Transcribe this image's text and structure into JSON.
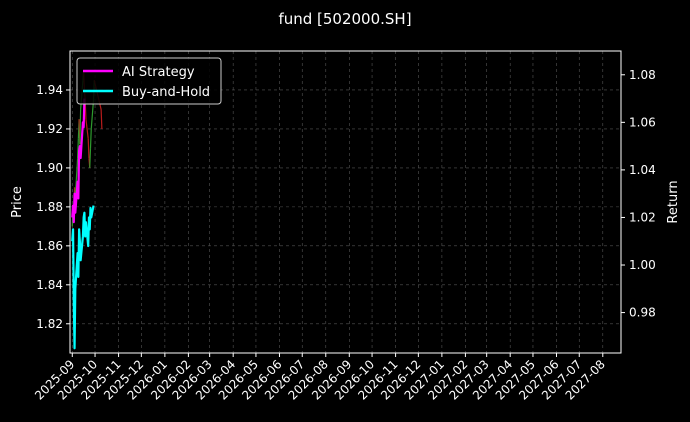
{
  "chart_data": {
    "type": "line",
    "title": "fund [502000.SH]",
    "ylabel_left": "Price",
    "ylabel_right": "Return",
    "x_ticks": [
      "2025-09",
      "2025-10",
      "2025-11",
      "2025-12",
      "2026-01",
      "2026-02",
      "2026-03",
      "2026-04",
      "2026-05",
      "2026-06",
      "2026-07",
      "2026-08",
      "2026-09",
      "2026-10",
      "2026-11",
      "2026-12",
      "2027-01",
      "2027-02",
      "2027-03",
      "2027-04",
      "2027-05",
      "2027-06",
      "2027-07",
      "2027-08"
    ],
    "xlim": [
      "2025-08-29",
      "2027-08-25"
    ],
    "y_left_ticks": [
      1.82,
      1.84,
      1.86,
      1.88,
      1.9,
      1.92,
      1.94
    ],
    "y_left_lim": [
      1.805,
      1.96
    ],
    "y_right_ticks": [
      0.98,
      1.0,
      1.02,
      1.04,
      1.06,
      1.08
    ],
    "y_right_lim": [
      0.963,
      1.09
    ],
    "grid": true,
    "legend_position": "upper-left",
    "price_series": {
      "note_colors": "price drawn as green/red segments (up/down)",
      "up_color": "#2e9b2e",
      "down_color": "#b81c1c",
      "points": [
        [
          "2025-09-01",
          1.87
        ],
        [
          "2025-09-02",
          1.88
        ],
        [
          "2025-09-03",
          1.875
        ],
        [
          "2025-09-04",
          1.89
        ],
        [
          "2025-09-05",
          1.885
        ],
        [
          "2025-09-08",
          1.905
        ],
        [
          "2025-09-09",
          1.915
        ],
        [
          "2025-09-10",
          1.925
        ],
        [
          "2025-09-11",
          1.912
        ],
        [
          "2025-09-12",
          1.93
        ],
        [
          "2025-09-15",
          1.945
        ],
        [
          "2025-09-16",
          1.95
        ],
        [
          "2025-09-17",
          1.94
        ],
        [
          "2025-09-18",
          1.935
        ],
        [
          "2025-09-19",
          1.925
        ],
        [
          "2025-09-22",
          1.915
        ],
        [
          "2025-09-23",
          1.905
        ],
        [
          "2025-09-24",
          1.9
        ],
        [
          "2025-09-25",
          1.91
        ],
        [
          "2025-09-26",
          1.92
        ],
        [
          "2025-09-29",
          1.935
        ],
        [
          "2025-09-30",
          1.945
        ],
        [
          "2025-10-09",
          1.93
        ],
        [
          "2025-10-10",
          1.92
        ]
      ]
    },
    "series": [
      {
        "name": "AI Strategy",
        "color": "#ff00ff",
        "axis": "right",
        "points": [
          [
            "2025-09-01",
            1.02
          ],
          [
            "2025-09-02",
            1.025
          ],
          [
            "2025-09-03",
            1.018
          ],
          [
            "2025-09-04",
            1.03
          ],
          [
            "2025-09-05",
            1.022
          ],
          [
            "2025-09-08",
            1.035
          ],
          [
            "2025-09-09",
            1.028
          ],
          [
            "2025-09-10",
            1.048
          ],
          [
            "2025-09-11",
            1.05
          ],
          [
            "2025-09-12",
            1.045
          ],
          [
            "2025-09-15",
            1.06
          ],
          [
            "2025-09-16",
            1.058
          ],
          [
            "2025-09-17",
            1.07
          ]
        ]
      },
      {
        "name": "Buy-and-Hold",
        "color": "#00ffff",
        "axis": "right",
        "points": [
          [
            "2025-09-01",
            1.01
          ],
          [
            "2025-09-02",
            1.015
          ],
          [
            "2025-09-03",
            0.985
          ],
          [
            "2025-09-04",
            0.965
          ],
          [
            "2025-09-05",
            0.99
          ],
          [
            "2025-09-08",
            1.005
          ],
          [
            "2025-09-09",
            0.995
          ],
          [
            "2025-09-10",
            1.015
          ],
          [
            "2025-09-11",
            1.01
          ],
          [
            "2025-09-12",
            1.002
          ],
          [
            "2025-09-15",
            1.012
          ],
          [
            "2025-09-16",
            1.02
          ],
          [
            "2025-09-17",
            1.022
          ],
          [
            "2025-09-18",
            1.012
          ],
          [
            "2025-09-19",
            1.018
          ],
          [
            "2025-09-22",
            1.008
          ],
          [
            "2025-09-23",
            1.02
          ],
          [
            "2025-09-24",
            1.015
          ],
          [
            "2025-09-25",
            1.024
          ],
          [
            "2025-09-26",
            1.02
          ],
          [
            "2025-09-29",
            1.025
          ]
        ]
      }
    ],
    "legend": [
      "AI Strategy",
      "Buy-and-Hold"
    ]
  }
}
